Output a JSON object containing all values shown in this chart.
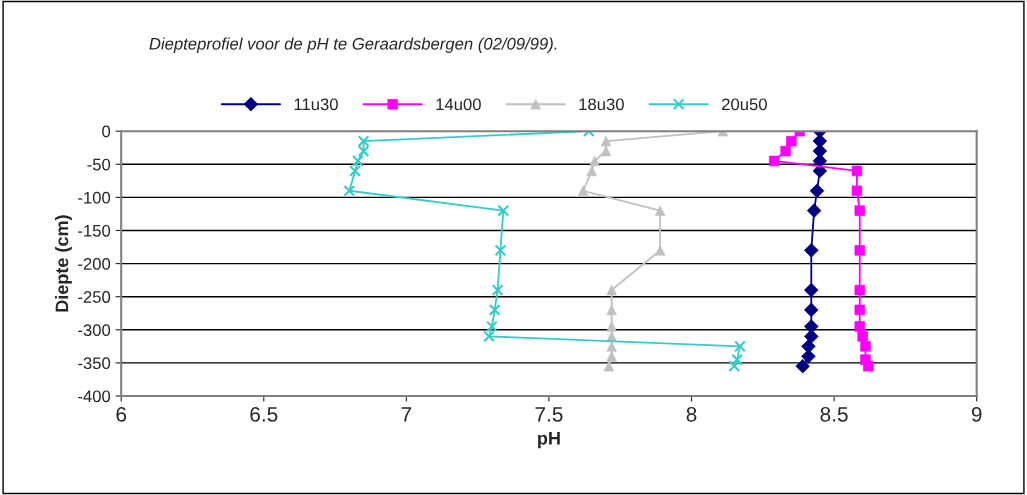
{
  "chart_data": {
    "type": "line",
    "title": "Diepteprofiel voor de pH te Geraardsbergen (02/09/99).",
    "xlabel": "pH",
    "ylabel": "Diepte (cm)",
    "xlim": [
      6,
      9
    ],
    "xticks": [
      6,
      6.5,
      7,
      7.5,
      8,
      8.5,
      9
    ],
    "ylim": [
      -400,
      0
    ],
    "yticks": [
      -400,
      -350,
      -300,
      -250,
      -200,
      -150,
      -100,
      -50,
      0
    ],
    "grid": "y",
    "legend": "top",
    "series": [
      {
        "name": "11u30",
        "color": "#000080",
        "marker": "diamond",
        "x": [
          8.45,
          8.45,
          8.45,
          8.45,
          8.45,
          8.44,
          8.43,
          8.42,
          8.42,
          8.42,
          8.42,
          8.42,
          8.41,
          8.41,
          8.39
        ],
        "values": [
          0,
          -15,
          -30,
          -45,
          -60,
          -90,
          -120,
          -180,
          -240,
          -270,
          -295,
          -310,
          -325,
          -340,
          -355
        ]
      },
      {
        "name": "14u00",
        "color": "#ff00ff",
        "marker": "square",
        "x": [
          8.38,
          8.35,
          8.33,
          8.29,
          8.58,
          8.58,
          8.59,
          8.59,
          8.59,
          8.59,
          8.59,
          8.6,
          8.61,
          8.61,
          8.62
        ],
        "values": [
          0,
          -15,
          -30,
          -45,
          -60,
          -90,
          -120,
          -180,
          -240,
          -270,
          -295,
          -310,
          -325,
          -345,
          -355
        ]
      },
      {
        "name": "18u30",
        "color": "#c0c0c0",
        "marker": "triangle",
        "x": [
          8.11,
          7.7,
          7.7,
          7.66,
          7.65,
          7.62,
          7.89,
          7.89,
          7.72,
          7.72,
          7.72,
          7.72,
          7.72,
          7.72,
          7.71
        ],
        "values": [
          0,
          -15,
          -30,
          -45,
          -60,
          -90,
          -120,
          -180,
          -240,
          -270,
          -295,
          -310,
          -325,
          -340,
          -355
        ]
      },
      {
        "name": "20u50",
        "color": "#33cccc",
        "marker": "cross",
        "x": [
          7.64,
          6.85,
          6.85,
          6.83,
          6.82,
          6.8,
          7.34,
          7.33,
          7.32,
          7.31,
          7.3,
          7.29,
          8.17,
          8.16,
          8.15
        ],
        "values": [
          0,
          -15,
          -30,
          -45,
          -60,
          -90,
          -120,
          -180,
          -240,
          -270,
          -295,
          -310,
          -325,
          -345,
          -355
        ]
      }
    ]
  }
}
